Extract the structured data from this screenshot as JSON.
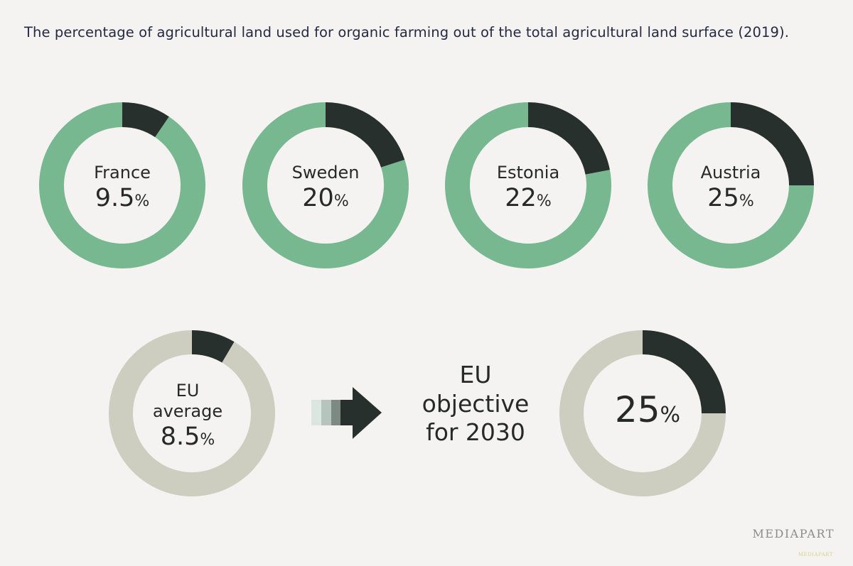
{
  "title": "The percentage of agricultural land used for organic farming out of the total agricultural land surface (2019).",
  "colors": {
    "organic": "#27302c",
    "country_rest": "#77b890",
    "eu_rest": "#cdcdc0",
    "background": "#f5f3f1",
    "arrow_dark": "#27302c",
    "arrow_fade_1": "#dbe6e0",
    "arrow_fade_2": "#b5c4bc",
    "arrow_fade_3": "#7c8a83"
  },
  "chart_data": {
    "type": "pie",
    "donuts": [
      {
        "label": "France",
        "value": 9.5,
        "value_text": "9.5",
        "unit": "%"
      },
      {
        "label": "Sweden",
        "value": 20,
        "value_text": "20",
        "unit": "%"
      },
      {
        "label": "Estonia",
        "value": 22,
        "value_text": "22",
        "unit": "%"
      },
      {
        "label": "Austria",
        "value": 25,
        "value_text": "25",
        "unit": "%"
      },
      {
        "label_lines": [
          "EU",
          "average"
        ],
        "value": 8.5,
        "value_text": "8.5",
        "unit": "%"
      },
      {
        "label": "",
        "value": 25,
        "value_text": "25",
        "unit": "%"
      }
    ]
  },
  "objective_lines": [
    "EU",
    "objective",
    "for 2030"
  ],
  "brand": "MEDIAPART",
  "brand_small": "MEDIAPART"
}
